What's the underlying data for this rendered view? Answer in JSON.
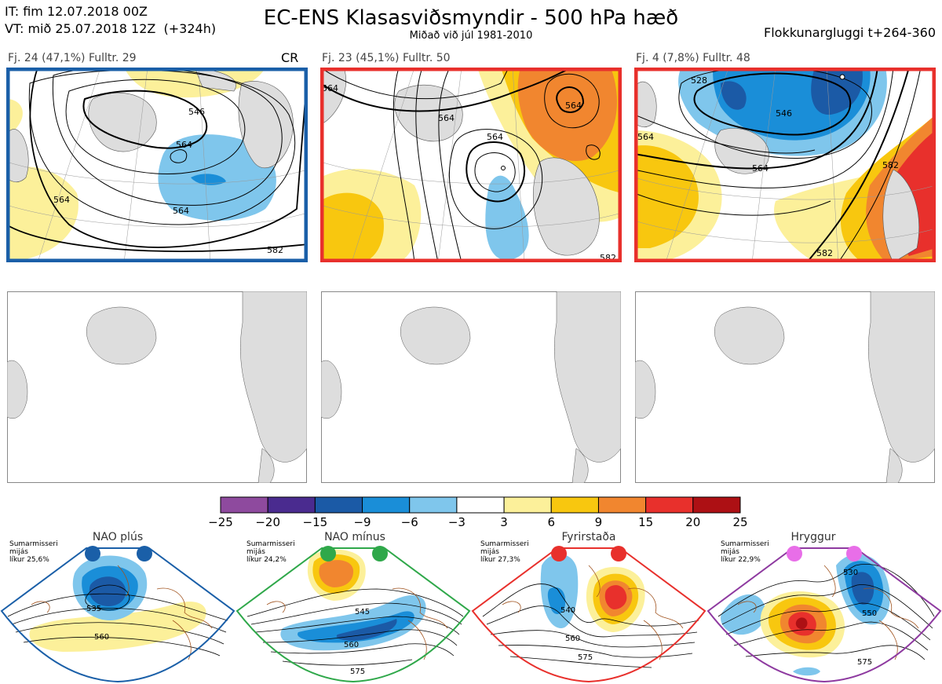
{
  "header": {
    "init_time": "IT: fim 12.07.2018 00Z",
    "valid_time": "VT: mið 25.07.2018 12Z  (+324h)",
    "title": "EC-ENS Klasasviðsmyndir - 500 hPa hæð",
    "subtitle": "Miðað við júl 1981-2010",
    "window": "Flokkunargluggi t+264-360"
  },
  "clusters": [
    {
      "label": "Fj. 24 (47,1%)   Fulltr. 29",
      "tag": "CR",
      "border_color": "#1a5fa8",
      "contours": [
        "546",
        "564",
        "564",
        "564",
        "582"
      ]
    },
    {
      "label": "Fj. 23 (45,1%)   Fulltr. 50",
      "tag": "",
      "border_color": "#e8302c",
      "contours": [
        "564",
        "564",
        "564",
        "564",
        "582"
      ]
    },
    {
      "label": "Fj. 4 (7,8%)   Fulltr. 48",
      "tag": "",
      "border_color": "#e8302c",
      "contours": [
        "528",
        "546",
        "564",
        "564",
        "582",
        "582"
      ]
    }
  ],
  "colorbar": {
    "ticks": [
      "−25",
      "−20",
      "−15",
      "−9",
      "−6",
      "−3",
      "3",
      "6",
      "9",
      "15",
      "20",
      "25"
    ],
    "colors": [
      "#8e4a9e",
      "#4a2b8f",
      "#1b5aa6",
      "#1a8ed8",
      "#7fc6ec",
      "#ffffff",
      "#fcf09a",
      "#f8c70f",
      "#f1862f",
      "#e8302c",
      "#ad1014"
    ]
  },
  "regimes": [
    {
      "name": "NAO plús",
      "season": "Sumarmisseri",
      "mean": "mijás",
      "likelihood": "líkur 25,6%",
      "border_color": "#1a5fa8",
      "dot_color": "#1a5fa8",
      "contours": [
        "535",
        "560"
      ]
    },
    {
      "name": "NAO mínus",
      "season": "Sumarmisseri",
      "mean": "mijás",
      "likelihood": "líkur 24,2%",
      "border_color": "#2fa84a",
      "dot_color": "#2fa84a",
      "contours": [
        "545",
        "560",
        "575"
      ]
    },
    {
      "name": "Fyrirstaða",
      "season": "Sumarmisseri",
      "mean": "mijás",
      "likelihood": "líkur 27,3%",
      "border_color": "#e8302c",
      "dot_color": "#e8302c",
      "contours": [
        "540",
        "560",
        "575"
      ]
    },
    {
      "name": "Hryggur",
      "season": "Sumarmisseri",
      "mean": "mijás",
      "likelihood": "líkur 22,9%",
      "border_color": "#8e3aa0",
      "dot_color": "#e86ee8",
      "contours": [
        "530",
        "550",
        "575"
      ]
    }
  ]
}
